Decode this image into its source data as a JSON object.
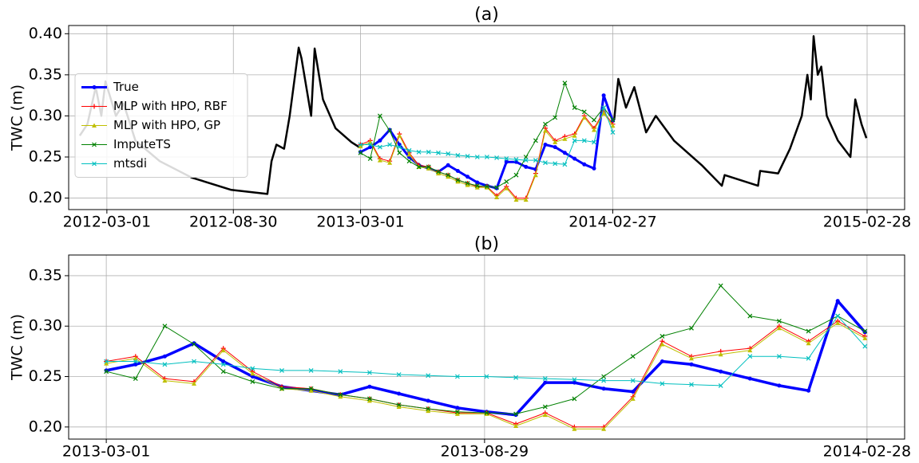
{
  "chart_data": [
    {
      "type": "line",
      "title": "(a)",
      "ylabel": "TWC (m)",
      "grid": true,
      "legend": "center left",
      "xlim": [
        "2012-01-06",
        "2015-04-23"
      ],
      "ylim": [
        0.186,
        0.41
      ],
      "xticks": [
        "2012-03-01",
        "2012-08-30",
        "2013-03-01",
        "2014-02-27",
        "2015-02-28"
      ],
      "yticks": [
        {
          "value": 0.2,
          "label": "0.20"
        },
        0.25,
        {
          "value": 0.3,
          "label": "0.30"
        },
        0.35,
        {
          "value": 0.4,
          "label": "0.40"
        }
      ],
      "x": [
        "2013-03-01",
        "2013-03-15",
        "2013-03-29",
        "2013-04-12",
        "2013-04-26",
        "2013-05-10",
        "2013-05-24",
        "2013-06-07",
        "2013-06-21",
        "2013-07-05",
        "2013-07-19",
        "2013-08-02",
        "2013-08-16",
        "2013-08-30",
        "2013-09-13",
        "2013-09-27",
        "2013-10-11",
        "2013-10-25",
        "2013-11-08",
        "2013-11-22",
        "2013-12-06",
        "2013-12-20",
        "2014-01-03",
        "2014-01-17",
        "2014-01-31",
        "2014-02-14",
        "2014-02-27"
      ],
      "series": [
        {
          "color": "#000000",
          "linewidth": 2.5,
          "marker": "none",
          "x": [
            "2012-01-22",
            "2012-02-02",
            "2012-02-14",
            "2012-02-22",
            "2012-02-28",
            "2012-03-14",
            "2012-03-25",
            "2012-04-11",
            "2012-05-16",
            "2012-07-01",
            "2012-08-27",
            "2012-10-18",
            "2012-10-24",
            "2012-10-31",
            "2012-11-11",
            "2012-11-19",
            "2012-12-02",
            "2012-12-06",
            "2012-12-20",
            "2012-12-25",
            "2013-01-06",
            "2013-01-24",
            "2013-02-16",
            "2013-02-27",
            "2013-09-01",
            "2014-03-01",
            "2014-03-07",
            "2014-03-18",
            "2014-03-30",
            "2014-04-16",
            "2014-04-30",
            "2014-05-26",
            "2014-07-05",
            "2014-08-03",
            "2014-08-07",
            "2014-09-24",
            "2014-09-27",
            "2014-10-23",
            "2014-11-09",
            "2014-11-26",
            "2014-12-04",
            "2014-12-09",
            "2014-12-13",
            "2014-12-19",
            "2014-12-24",
            "2015-01-01",
            "2015-01-17",
            "2015-02-04",
            "2015-02-11",
            "2015-02-20",
            "2015-02-27"
          ],
          "values": [
            0.276,
            0.29,
            0.335,
            0.3,
            0.342,
            0.3,
            0.315,
            0.27,
            0.245,
            0.225,
            0.21,
            0.205,
            0.245,
            0.265,
            0.26,
            0.3,
            0.383,
            0.37,
            0.3,
            0.382,
            0.32,
            0.285,
            0.268,
            0.262,
            null,
            0.295,
            0.345,
            0.31,
            0.335,
            0.28,
            0.3,
            0.27,
            0.24,
            0.215,
            0.228,
            0.215,
            0.233,
            0.23,
            0.26,
            0.3,
            0.35,
            0.32,
            0.397,
            0.35,
            0.36,
            0.3,
            0.27,
            0.25,
            0.32,
            0.29,
            0.273
          ]
        },
        {
          "name": "True",
          "color": "#0000ff",
          "linewidth": 3,
          "marker": "o",
          "values": [
            0.256,
            0.262,
            0.27,
            0.283,
            0.265,
            0.25,
            0.24,
            0.236,
            0.232,
            0.24,
            0.233,
            0.226,
            0.219,
            0.215,
            0.212,
            0.244,
            0.244,
            0.238,
            0.235,
            0.265,
            0.262,
            0.255,
            0.248,
            0.241,
            0.236,
            0.325,
            0.294
          ]
        },
        {
          "name": "MLP with HPO, RBF",
          "color": "#ff0000",
          "linewidth": 1,
          "marker": "+",
          "values": [
            0.265,
            0.27,
            0.248,
            0.245,
            0.278,
            0.255,
            0.24,
            0.238,
            0.232,
            0.228,
            0.222,
            0.218,
            0.214,
            0.214,
            0.203,
            0.214,
            0.2,
            0.2,
            0.23,
            0.285,
            0.27,
            0.275,
            0.278,
            0.3,
            0.285,
            0.305,
            0.29
          ]
        },
        {
          "name": "MLP with HPO, GP",
          "color": "#bfbf00",
          "linewidth": 1,
          "marker": "^",
          "values": [
            0.263,
            0.268,
            0.246,
            0.243,
            0.276,
            0.253,
            0.238,
            0.236,
            0.23,
            0.226,
            0.22,
            0.216,
            0.213,
            0.213,
            0.201,
            0.212,
            0.198,
            0.198,
            0.228,
            0.282,
            0.268,
            0.272,
            0.276,
            0.298,
            0.283,
            0.303,
            0.288
          ]
        },
        {
          "name": "ImputeTS",
          "color": "#008000",
          "linewidth": 1,
          "marker": "x",
          "values": [
            0.255,
            0.248,
            0.3,
            0.282,
            0.255,
            0.245,
            0.238,
            0.238,
            0.232,
            0.228,
            0.222,
            0.218,
            0.215,
            0.214,
            0.213,
            0.22,
            0.228,
            0.25,
            0.27,
            0.29,
            0.298,
            0.34,
            0.31,
            0.305,
            0.295,
            0.31,
            0.295
          ]
        },
        {
          "name": "mtsdi",
          "color": "#00bfbf",
          "linewidth": 1,
          "marker": "x",
          "values": [
            0.265,
            0.265,
            0.262,
            0.265,
            0.262,
            0.258,
            0.256,
            0.256,
            0.255,
            0.254,
            0.252,
            0.251,
            0.25,
            0.25,
            0.249,
            0.248,
            0.247,
            0.246,
            0.246,
            0.243,
            0.242,
            0.241,
            0.27,
            0.27,
            0.268,
            0.31,
            0.28
          ]
        }
      ]
    },
    {
      "type": "line",
      "title": "(b)",
      "ylabel": "TWC (m)",
      "grid": true,
      "xlim": [
        "2013-02-11",
        "2014-03-18"
      ],
      "ylim": [
        0.188,
        0.3705
      ],
      "xticks": [
        "2013-03-01",
        "2013-08-29",
        "2014-02-28"
      ],
      "yticks": [
        {
          "value": 0.2,
          "label": "0.20"
        },
        0.25,
        {
          "value": 0.3,
          "label": "0.30"
        },
        0.35
      ],
      "x": [
        "2013-03-01",
        "2013-03-15",
        "2013-03-29",
        "2013-04-12",
        "2013-04-26",
        "2013-05-10",
        "2013-05-24",
        "2013-06-07",
        "2013-06-21",
        "2013-07-05",
        "2013-07-19",
        "2013-08-02",
        "2013-08-16",
        "2013-08-30",
        "2013-09-13",
        "2013-09-27",
        "2013-10-11",
        "2013-10-25",
        "2013-11-08",
        "2013-11-22",
        "2013-12-06",
        "2013-12-20",
        "2014-01-03",
        "2014-01-17",
        "2014-01-31",
        "2014-02-14",
        "2014-02-27"
      ],
      "series": [
        {
          "color": "#0000ff",
          "linewidth": 3.5,
          "marker": "o",
          "values": [
            0.256,
            0.262,
            0.27,
            0.283,
            0.265,
            0.25,
            0.24,
            0.236,
            0.232,
            0.24,
            0.233,
            0.226,
            0.219,
            0.215,
            0.212,
            0.244,
            0.244,
            0.238,
            0.235,
            0.265,
            0.262,
            0.255,
            0.248,
            0.241,
            0.236,
            0.325,
            0.294
          ]
        },
        {
          "color": "#ff0000",
          "linewidth": 1,
          "marker": "+",
          "values": [
            0.265,
            0.27,
            0.248,
            0.245,
            0.278,
            0.255,
            0.24,
            0.238,
            0.232,
            0.228,
            0.222,
            0.218,
            0.214,
            0.214,
            0.203,
            0.214,
            0.2,
            0.2,
            0.23,
            0.285,
            0.27,
            0.275,
            0.278,
            0.3,
            0.285,
            0.305,
            0.29
          ]
        },
        {
          "color": "#bfbf00",
          "linewidth": 1,
          "marker": "^",
          "values": [
            0.263,
            0.268,
            0.246,
            0.243,
            0.276,
            0.253,
            0.238,
            0.236,
            0.23,
            0.226,
            0.22,
            0.216,
            0.213,
            0.213,
            0.201,
            0.212,
            0.198,
            0.198,
            0.228,
            0.282,
            0.268,
            0.272,
            0.276,
            0.298,
            0.283,
            0.303,
            0.288
          ]
        },
        {
          "color": "#008000",
          "linewidth": 1,
          "marker": "x",
          "values": [
            0.255,
            0.248,
            0.3,
            0.282,
            0.255,
            0.245,
            0.238,
            0.238,
            0.232,
            0.228,
            0.222,
            0.218,
            0.215,
            0.214,
            0.213,
            0.22,
            0.228,
            0.25,
            0.27,
            0.29,
            0.298,
            0.34,
            0.31,
            0.305,
            0.295,
            0.31,
            0.295
          ]
        },
        {
          "color": "#00bfbf",
          "linewidth": 1,
          "marker": "x",
          "values": [
            0.265,
            0.265,
            0.262,
            0.265,
            0.262,
            0.258,
            0.256,
            0.256,
            0.255,
            0.254,
            0.252,
            0.251,
            0.25,
            0.25,
            0.249,
            0.248,
            0.247,
            0.246,
            0.246,
            0.243,
            0.242,
            0.241,
            0.27,
            0.27,
            0.268,
            0.31,
            0.28
          ]
        }
      ]
    }
  ]
}
